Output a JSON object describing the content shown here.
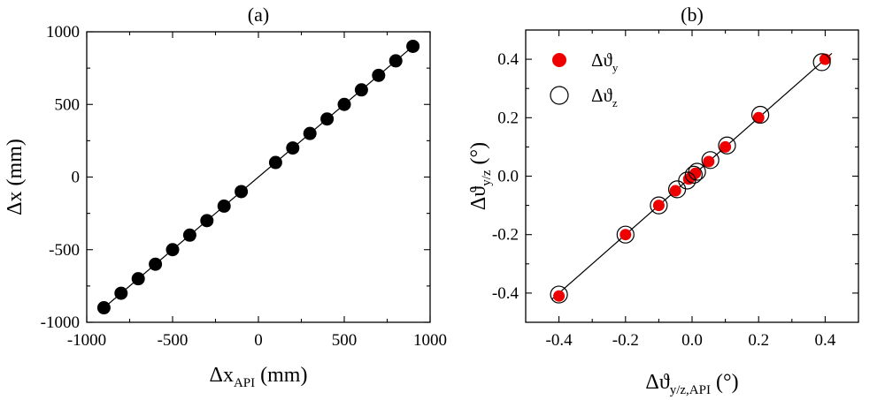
{
  "chart_data": [
    {
      "type": "scatter",
      "panel_label": "(a)",
      "xlabel": {
        "main": "Δx",
        "sub": "API",
        "unit": " (mm)"
      },
      "ylabel": {
        "main": "Δx (mm)"
      },
      "xlim": [
        -1000,
        1000
      ],
      "ylim": [
        -1000,
        1000
      ],
      "xticks": [
        -1000,
        -500,
        0,
        500,
        1000
      ],
      "yticks": [
        -1000,
        -500,
        0,
        500,
        1000
      ],
      "xtick_labels": [
        "-1000",
        "-500",
        "0",
        "500",
        "1000"
      ],
      "ytick_labels": [
        "-1000",
        "-500",
        "0",
        "500",
        "1000"
      ],
      "fit_line": {
        "from": [
          -900,
          -900
        ],
        "to": [
          900,
          900
        ]
      },
      "series": [
        {
          "name": "Δx",
          "marker": "filled-circle",
          "color": "#000000",
          "x": [
            -900,
            -800,
            -700,
            -600,
            -500,
            -400,
            -300,
            -200,
            -100,
            100,
            200,
            300,
            400,
            500,
            600,
            700,
            800,
            900
          ],
          "y": [
            -900,
            -800,
            -700,
            -600,
            -500,
            -400,
            -300,
            -200,
            -100,
            100,
            200,
            300,
            400,
            500,
            600,
            700,
            800,
            900
          ]
        }
      ]
    },
    {
      "type": "scatter",
      "panel_label": "(b)",
      "xlabel": {
        "main": "Δϑ",
        "sub": "y/z,API",
        "unit": " (°)"
      },
      "ylabel": {
        "main": "Δϑ",
        "sub": "y/z",
        "unit": " (°)"
      },
      "xlim": [
        -0.5,
        0.5
      ],
      "ylim": [
        -0.5,
        0.5
      ],
      "xticks": [
        -0.4,
        -0.2,
        0.0,
        0.2,
        0.4
      ],
      "yticks": [
        -0.4,
        -0.2,
        0.0,
        0.2,
        0.4
      ],
      "xtick_labels": [
        "-0.4",
        "-0.2",
        "0.0",
        "0.2",
        "0.4"
      ],
      "ytick_labels": [
        "-0.4",
        "-0.2",
        "0.0",
        "0.2",
        "0.4"
      ],
      "fit_line": {
        "from": [
          -0.42,
          -0.42
        ],
        "to": [
          0.42,
          0.42
        ]
      },
      "legend": {
        "position": "top-left"
      },
      "series": [
        {
          "name": "Δϑ",
          "name_sub": "y",
          "marker": "filled-circle",
          "color": "#ee0000",
          "x": [
            -0.4,
            -0.2,
            -0.1,
            -0.05,
            -0.01,
            0.0,
            0.01,
            0.05,
            0.1,
            0.2,
            0.4
          ],
          "y": [
            -0.41,
            -0.2,
            -0.1,
            -0.05,
            -0.01,
            0.0,
            0.01,
            0.05,
            0.1,
            0.2,
            0.4
          ]
        },
        {
          "name": "Δϑ",
          "name_sub": "z",
          "marker": "open-circle",
          "color": "#000000",
          "x": [
            -0.4,
            -0.2,
            -0.1,
            -0.045,
            -0.015,
            0.005,
            0.015,
            0.055,
            0.105,
            0.205,
            0.39
          ],
          "y": [
            -0.405,
            -0.2,
            -0.1,
            -0.045,
            -0.015,
            0.005,
            0.015,
            0.055,
            0.105,
            0.21,
            0.39
          ]
        }
      ]
    }
  ]
}
